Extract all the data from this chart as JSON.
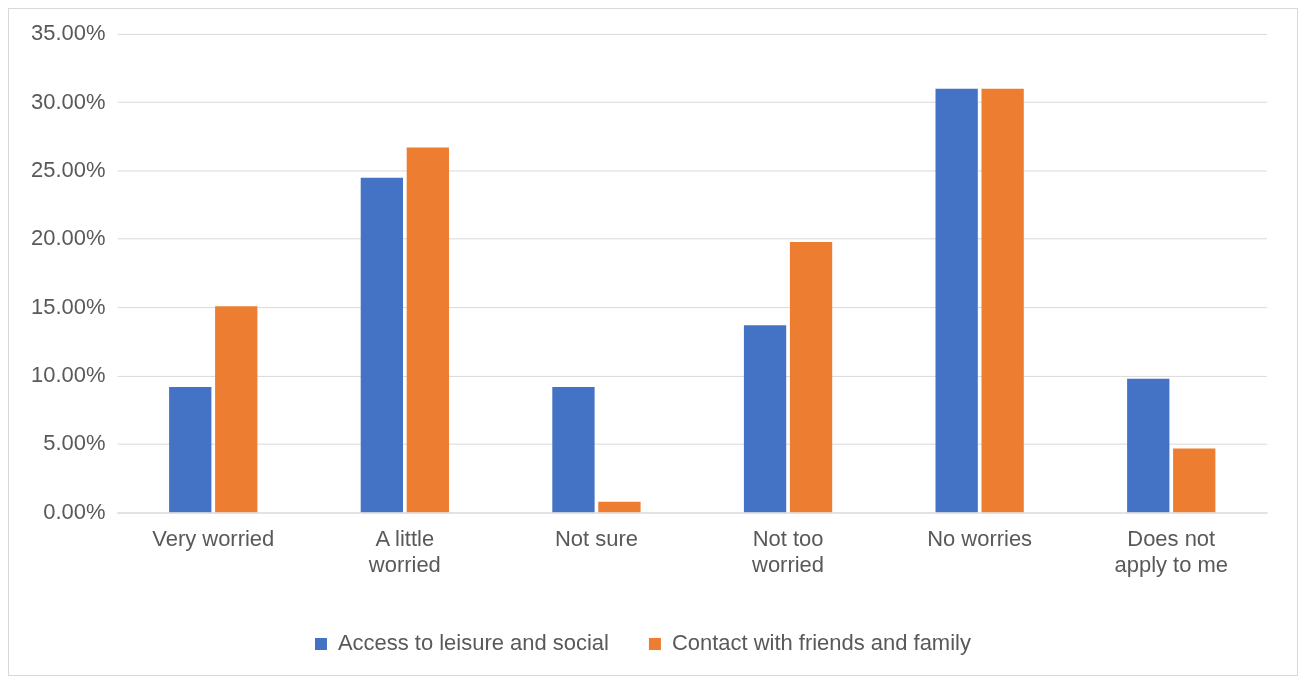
{
  "chart_data": {
    "type": "bar",
    "categories": [
      "Very worried",
      "A little worried",
      "Not sure",
      "Not too worried",
      "No worries",
      "Does not apply to me"
    ],
    "series": [
      {
        "name": "Access to leisure and social",
        "color": "#4472c4",
        "values": [
          9.2,
          24.5,
          9.2,
          13.7,
          31.0,
          9.8
        ]
      },
      {
        "name": "Contact with friends and family",
        "color": "#ed7d31",
        "values": [
          15.1,
          26.7,
          0.8,
          19.8,
          31.0,
          4.7
        ]
      }
    ],
    "ylim": [
      0,
      35
    ],
    "yticks": [
      {
        "value": 0,
        "label": "0.00%"
      },
      {
        "value": 5,
        "label": "5.00%"
      },
      {
        "value": 10,
        "label": "10.00%"
      },
      {
        "value": 15,
        "label": "15.00%"
      },
      {
        "value": 20,
        "label": "20.00%"
      },
      {
        "value": 25,
        "label": "25.00%"
      },
      {
        "value": 30,
        "label": "30.00%"
      },
      {
        "value": 35,
        "label": "35.00%"
      }
    ],
    "grid": "y",
    "legend": "bottom"
  }
}
